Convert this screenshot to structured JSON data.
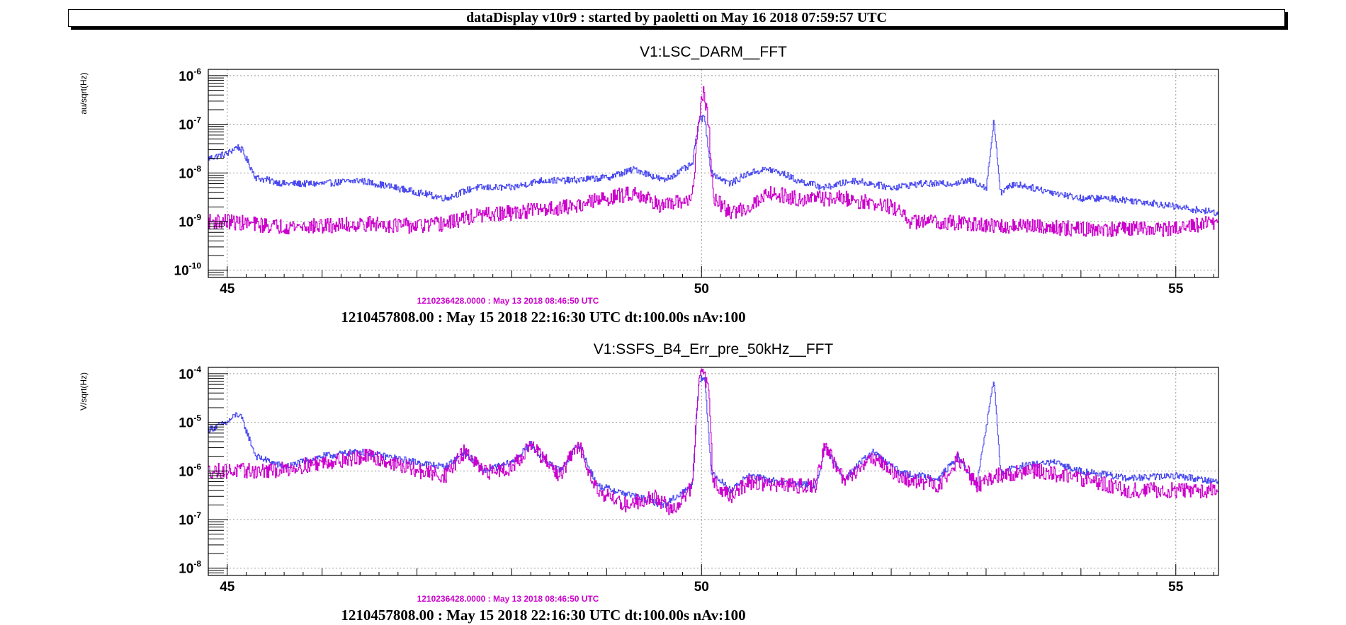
{
  "header": {
    "title": "dataDisplay v10r9 : started by paoletti on May 16 2018 07:59:57 UTC"
  },
  "colors": {
    "reference": "#4a4af0",
    "current": "#cc00cc",
    "grid": "#9a9a9a",
    "frame": "#000000"
  },
  "chart_data": [
    {
      "type": "line",
      "title": "V1:LSC_DARM__FFT",
      "ylabel": "au/sqrt(Hz)",
      "xlabel": "",
      "xlim": [
        44.8,
        55.45
      ],
      "ylim_log10": [
        -10.15,
        -5.87
      ],
      "y_scale": "log",
      "grid": true,
      "x_major_ticks": [
        45,
        50,
        55
      ],
      "x_minor_ticks": [
        46,
        47,
        48,
        49,
        51,
        52,
        53,
        54
      ],
      "y_decades": [
        -6,
        -7,
        -8,
        -9,
        -10
      ],
      "y_tick_labels": [
        {
          "base": "10",
          "exp": "-6"
        },
        {
          "base": "10",
          "exp": "-7"
        },
        {
          "base": "10",
          "exp": "-8"
        },
        {
          "base": "10",
          "exp": "-9"
        },
        {
          "base": "10",
          "exp": "-10"
        }
      ],
      "ref_time_label": "1210236428.0000 : May 13 2018 08:46:50 UTC",
      "time_label": "1210457808.00 : May 15 2018 22:16:30 UTC dt:100.00s nAv:100",
      "series": [
        {
          "key": "reference",
          "color": "#4a4af0",
          "x": [
            44.8,
            45.0,
            45.1,
            45.15,
            45.3,
            45.6,
            46.0,
            46.4,
            47.0,
            47.3,
            47.6,
            48.0,
            48.3,
            48.6,
            49.0,
            49.3,
            49.6,
            49.9,
            49.97,
            50.03,
            50.1,
            50.3,
            50.5,
            50.7,
            50.9,
            51.0,
            51.3,
            51.6,
            52.0,
            52.3,
            52.6,
            52.85,
            53.0,
            53.08,
            53.15,
            53.3,
            53.7,
            54.0,
            54.3,
            54.7,
            55.0,
            55.45
          ],
          "y": [
            2e-08,
            2.5e-08,
            3.5e-08,
            3e-08,
            8e-09,
            6e-09,
            6e-09,
            7e-09,
            4e-09,
            3e-09,
            5e-09,
            5e-09,
            7e-09,
            7e-09,
            8e-09,
            1.2e-08,
            7e-09,
            1.5e-08,
            1.2e-07,
            1.4e-07,
            1e-08,
            6e-09,
            1e-08,
            1.2e-08,
            9e-09,
            7e-09,
            5e-09,
            7e-09,
            5e-09,
            6e-09,
            6e-09,
            7e-09,
            5e-09,
            1.2e-07,
            4e-09,
            6e-09,
            4e-09,
            3e-09,
            3e-09,
            2.5e-09,
            2e-09,
            1.5e-09
          ]
        },
        {
          "key": "current",
          "color": "#cc00cc",
          "x": [
            44.8,
            45.0,
            45.5,
            46.0,
            46.5,
            47.0,
            47.3,
            47.6,
            48.0,
            48.3,
            48.6,
            49.0,
            49.3,
            49.6,
            49.9,
            49.97,
            50.02,
            50.07,
            50.12,
            50.3,
            50.5,
            50.7,
            51.0,
            51.5,
            52.0,
            52.2,
            52.5,
            52.8,
            53.0,
            53.5,
            54.0,
            54.5,
            55.0,
            55.45
          ],
          "y": [
            1e-09,
            1e-09,
            8e-10,
            8e-10,
            9e-10,
            8e-10,
            9e-10,
            1.3e-09,
            1.5e-09,
            1.8e-09,
            2e-09,
            3e-09,
            4e-09,
            2e-09,
            3e-09,
            1.5e-07,
            4.5e-07,
            1.2e-07,
            3e-09,
            1.5e-09,
            2e-09,
            4e-09,
            3e-09,
            3e-09,
            2e-09,
            1e-09,
            1e-09,
            9e-10,
            8e-10,
            8e-10,
            7e-10,
            7e-10,
            7e-10,
            1e-09
          ]
        }
      ]
    },
    {
      "type": "line",
      "title": "V1:SSFS_B4_Err_pre_50kHz__FFT",
      "ylabel": "V/sqrt(Hz)",
      "xlabel": "",
      "xlim": [
        44.8,
        55.45
      ],
      "ylim_log10": [
        -8.15,
        -3.87
      ],
      "y_scale": "log",
      "grid": true,
      "x_major_ticks": [
        45,
        50,
        55
      ],
      "x_minor_ticks": [
        46,
        47,
        48,
        49,
        51,
        52,
        53,
        54
      ],
      "y_decades": [
        -4,
        -5,
        -6,
        -7,
        -8
      ],
      "y_tick_labels": [
        {
          "base": "10",
          "exp": "-4"
        },
        {
          "base": "10",
          "exp": "-5"
        },
        {
          "base": "10",
          "exp": "-6"
        },
        {
          "base": "10",
          "exp": "-7"
        },
        {
          "base": "10",
          "exp": "-8"
        }
      ],
      "ref_time_label": "1210236428.0000 : May 13 2018 08:46:50 UTC",
      "time_label": "1210457808.00 : May 15 2018 22:16:30 UTC dt:100.00s nAv:100",
      "series": [
        {
          "key": "reference",
          "color": "#4a4af0",
          "x": [
            44.8,
            45.0,
            45.1,
            45.15,
            45.3,
            45.6,
            46.0,
            46.4,
            47.0,
            47.3,
            47.5,
            47.7,
            48.0,
            48.2,
            48.3,
            48.5,
            48.7,
            48.9,
            49.3,
            49.6,
            49.9,
            49.97,
            50.03,
            50.1,
            50.3,
            50.5,
            50.8,
            51.2,
            51.3,
            51.5,
            51.8,
            52.1,
            52.5,
            52.7,
            52.9,
            53.08,
            53.15,
            53.3,
            53.7,
            54.0,
            54.5,
            55.0,
            55.45
          ],
          "y": [
            7e-06,
            1e-05,
            1.5e-05,
            1.2e-05,
            2e-06,
            1.2e-06,
            2e-06,
            2.5e-06,
            1.5e-06,
            1.2e-06,
            2.5e-06,
            1e-06,
            1.5e-06,
            3.5e-06,
            2e-06,
            1e-06,
            3.5e-06,
            5e-07,
            3e-07,
            2e-07,
            5e-07,
            8e-05,
            8e-05,
            1e-06,
            4e-07,
            8e-07,
            6e-07,
            5e-07,
            3e-06,
            7e-07,
            2.5e-06,
            9e-07,
            7e-07,
            2e-06,
            5e-07,
            8e-05,
            9e-07,
            1.2e-06,
            1.5e-06,
            1e-06,
            7e-07,
            8e-07,
            6e-07
          ]
        },
        {
          "key": "current",
          "color": "#cc00cc",
          "x": [
            44.8,
            45.0,
            45.5,
            46.0,
            46.5,
            47.0,
            47.3,
            47.5,
            47.7,
            48.0,
            48.2,
            48.3,
            48.5,
            48.7,
            48.9,
            49.2,
            49.5,
            49.7,
            49.9,
            49.97,
            50.02,
            50.07,
            50.12,
            50.3,
            50.5,
            50.8,
            51.2,
            51.3,
            51.5,
            51.8,
            52.1,
            52.5,
            52.7,
            52.9,
            53.1,
            53.5,
            54.0,
            54.5,
            55.0,
            55.45
          ],
          "y": [
            1e-06,
            1e-06,
            1e-06,
            1.5e-06,
            2e-06,
            1e-06,
            8e-07,
            2.5e-06,
            9e-07,
            1.2e-06,
            3.5e-06,
            2e-06,
            8e-07,
            3.5e-06,
            4e-07,
            2e-07,
            3e-07,
            1.5e-07,
            5e-07,
            8e-05,
            0.0001,
            5e-05,
            6e-07,
            3e-07,
            6e-07,
            5e-07,
            5e-07,
            3.5e-06,
            6e-07,
            2e-06,
            7e-07,
            5e-07,
            1.8e-06,
            5e-07,
            8e-07,
            1e-06,
            7e-07,
            4e-07,
            4e-07,
            4e-07
          ]
        }
      ]
    }
  ]
}
